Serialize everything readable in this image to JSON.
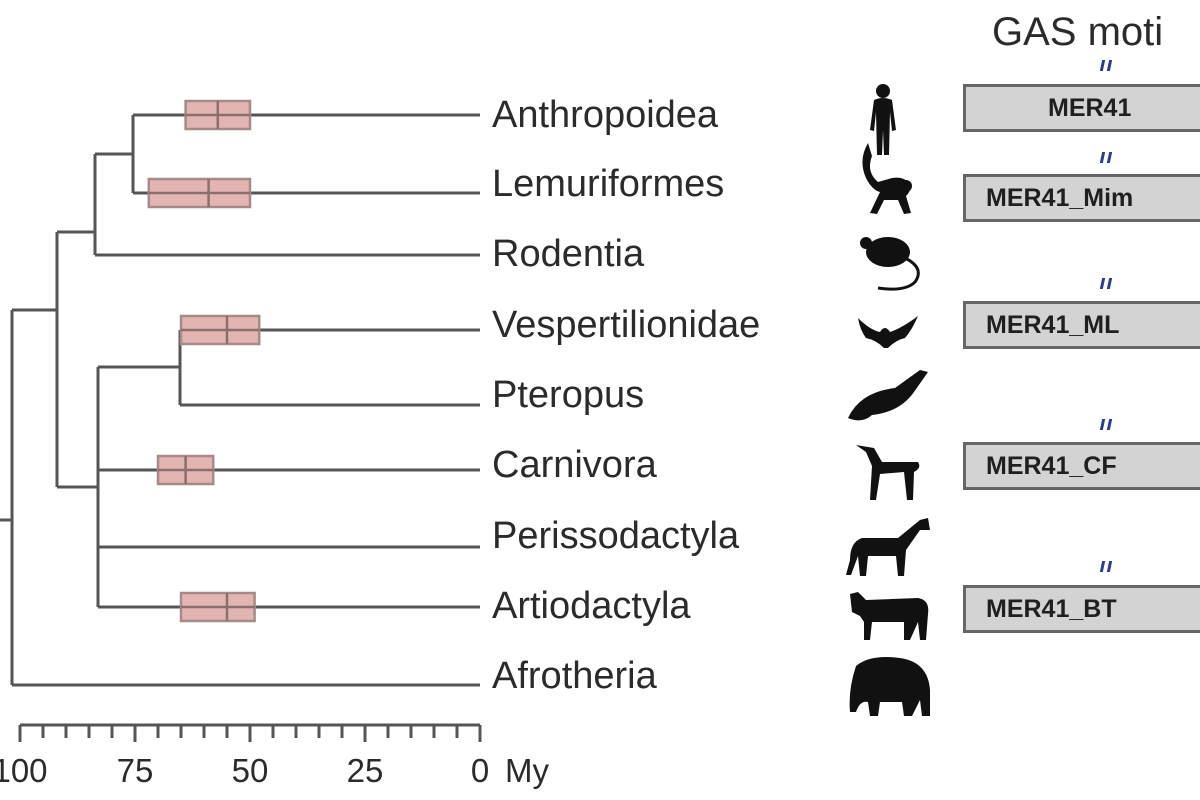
{
  "header": {
    "title": "GAS moti"
  },
  "taxa": [
    "Anthropoidea",
    "Lemuriformes",
    "Rodentia",
    "Vespertilionidae",
    "Pteropus",
    "Carnivora",
    "Perissodactyla",
    "Artiodactyla",
    "Afrotheria"
  ],
  "axis": {
    "ticks": [
      {
        "value": 100,
        "label": "100"
      },
      {
        "value": 75,
        "label": "75"
      },
      {
        "value": 50,
        "label": "50"
      },
      {
        "value": 25,
        "label": "25"
      },
      {
        "value": 0,
        "label": "0"
      }
    ],
    "unit": "My",
    "minor_step": 5
  },
  "divergence_estimates": [
    {
      "taxon": "Anthropoidea",
      "low": 50,
      "mid": 57,
      "high": 64
    },
    {
      "taxon": "Lemuriformes",
      "low": 50,
      "mid": 59,
      "high": 72
    },
    {
      "taxon": "Vespertilionidae",
      "low": 48,
      "mid": 55,
      "high": 65
    },
    {
      "taxon": "Carnivora",
      "low": 58,
      "mid": 64,
      "high": 70
    },
    {
      "taxon": "Artiodactyla",
      "low": 49,
      "mid": 55,
      "high": 65
    }
  ],
  "elements": [
    {
      "taxon": "Anthropoidea",
      "label": "MER41"
    },
    {
      "taxon": "Lemuriformes",
      "label": "MER41_Mim"
    },
    {
      "taxon": "Vespertilionidae",
      "label": "MER41_ML"
    },
    {
      "taxon": "Carnivora",
      "label": "MER41_CF"
    },
    {
      "taxon": "Artiodactyla",
      "label": "MER41_BT"
    }
  ],
  "silhouettes": [
    {
      "taxon": "Anthropoidea",
      "icon": "human-silhouette-icon"
    },
    {
      "taxon": "Lemuriformes",
      "icon": "lemur-silhouette-icon"
    },
    {
      "taxon": "Rodentia",
      "icon": "mouse-silhouette-icon"
    },
    {
      "taxon": "Vespertilionidae",
      "icon": "small-bat-silhouette-icon"
    },
    {
      "taxon": "Pteropus",
      "icon": "fruit-bat-silhouette-icon"
    },
    {
      "taxon": "Carnivora",
      "icon": "dog-silhouette-icon"
    },
    {
      "taxon": "Perissodactyla",
      "icon": "horse-silhouette-icon"
    },
    {
      "taxon": "Artiodactyla",
      "icon": "cow-silhouette-icon"
    },
    {
      "taxon": "Afrotheria",
      "icon": "elephant-silhouette-icon"
    }
  ],
  "colors": {
    "ci_fill": "#e2b5b2",
    "branch": "#555555",
    "element_fill": "#d3d3d3",
    "motif_mark": "#2a3d8f"
  }
}
